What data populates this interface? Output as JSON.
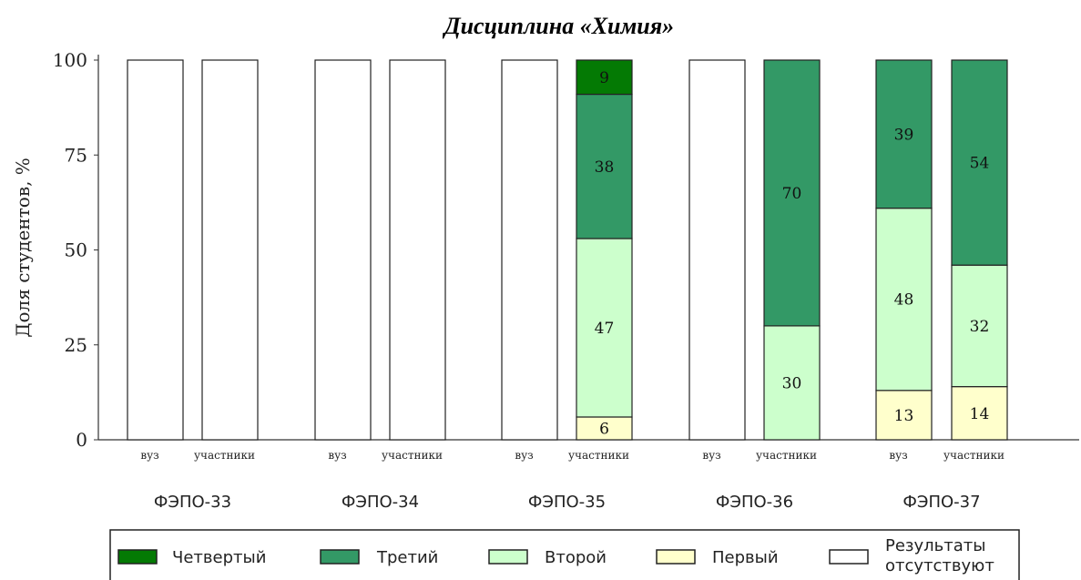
{
  "chart_data": {
    "type": "bar",
    "stacked": true,
    "title": "Дисциплина «Химия»",
    "ylabel": "Доля студентов, %",
    "ylim": [
      0,
      100
    ],
    "yticks": [
      "0",
      "25",
      "50",
      "75",
      "100"
    ],
    "grid": false,
    "legend_position": "bottom",
    "groups": [
      "ФЭПО-33",
      "ФЭПО-34",
      "ФЭПО-35",
      "ФЭПО-36",
      "ФЭПО-37"
    ],
    "subcategories": [
      "вуз",
      "участники"
    ],
    "no_results_label": "Результаты отсутствуют",
    "series": [
      {
        "name": "Четвертый",
        "color": "#047a04",
        "values": [
          null,
          null,
          null,
          null,
          null,
          9,
          null,
          null,
          null,
          null
        ]
      },
      {
        "name": "Третий",
        "color": "#339966",
        "values": [
          null,
          null,
          null,
          null,
          null,
          38,
          null,
          70,
          39,
          54
        ]
      },
      {
        "name": "Второй",
        "color": "#ccffcc",
        "values": [
          null,
          null,
          null,
          null,
          null,
          47,
          null,
          30,
          48,
          32
        ]
      },
      {
        "name": "Первый",
        "color": "#ffffcc",
        "values": [
          null,
          null,
          null,
          null,
          null,
          6,
          null,
          null,
          13,
          14
        ]
      }
    ],
    "bars": [
      {
        "group": "ФЭПО-33",
        "sub": "вуз",
        "no_results": true
      },
      {
        "group": "ФЭПО-33",
        "sub": "участники",
        "no_results": true
      },
      {
        "group": "ФЭПО-34",
        "sub": "вуз",
        "no_results": true
      },
      {
        "group": "ФЭПО-34",
        "sub": "участники",
        "no_results": true
      },
      {
        "group": "ФЭПО-35",
        "sub": "вуз",
        "no_results": true
      },
      {
        "group": "ФЭПО-35",
        "sub": "участники",
        "no_results": false
      },
      {
        "group": "ФЭПО-36",
        "sub": "вуз",
        "no_results": true
      },
      {
        "group": "ФЭПО-36",
        "sub": "участники",
        "no_results": false
      },
      {
        "group": "ФЭПО-37",
        "sub": "вуз",
        "no_results": false
      },
      {
        "group": "ФЭПО-37",
        "sub": "участники",
        "no_results": false
      }
    ],
    "legend": [
      {
        "label": "Четвертый",
        "color": "#047a04"
      },
      {
        "label": "Третий",
        "color": "#339966"
      },
      {
        "label": "Второй",
        "color": "#ccffcc"
      },
      {
        "label": "Первый",
        "color": "#ffffcc"
      },
      {
        "label": "Результаты\nотсутствуют",
        "color": "#ffffff"
      }
    ]
  }
}
